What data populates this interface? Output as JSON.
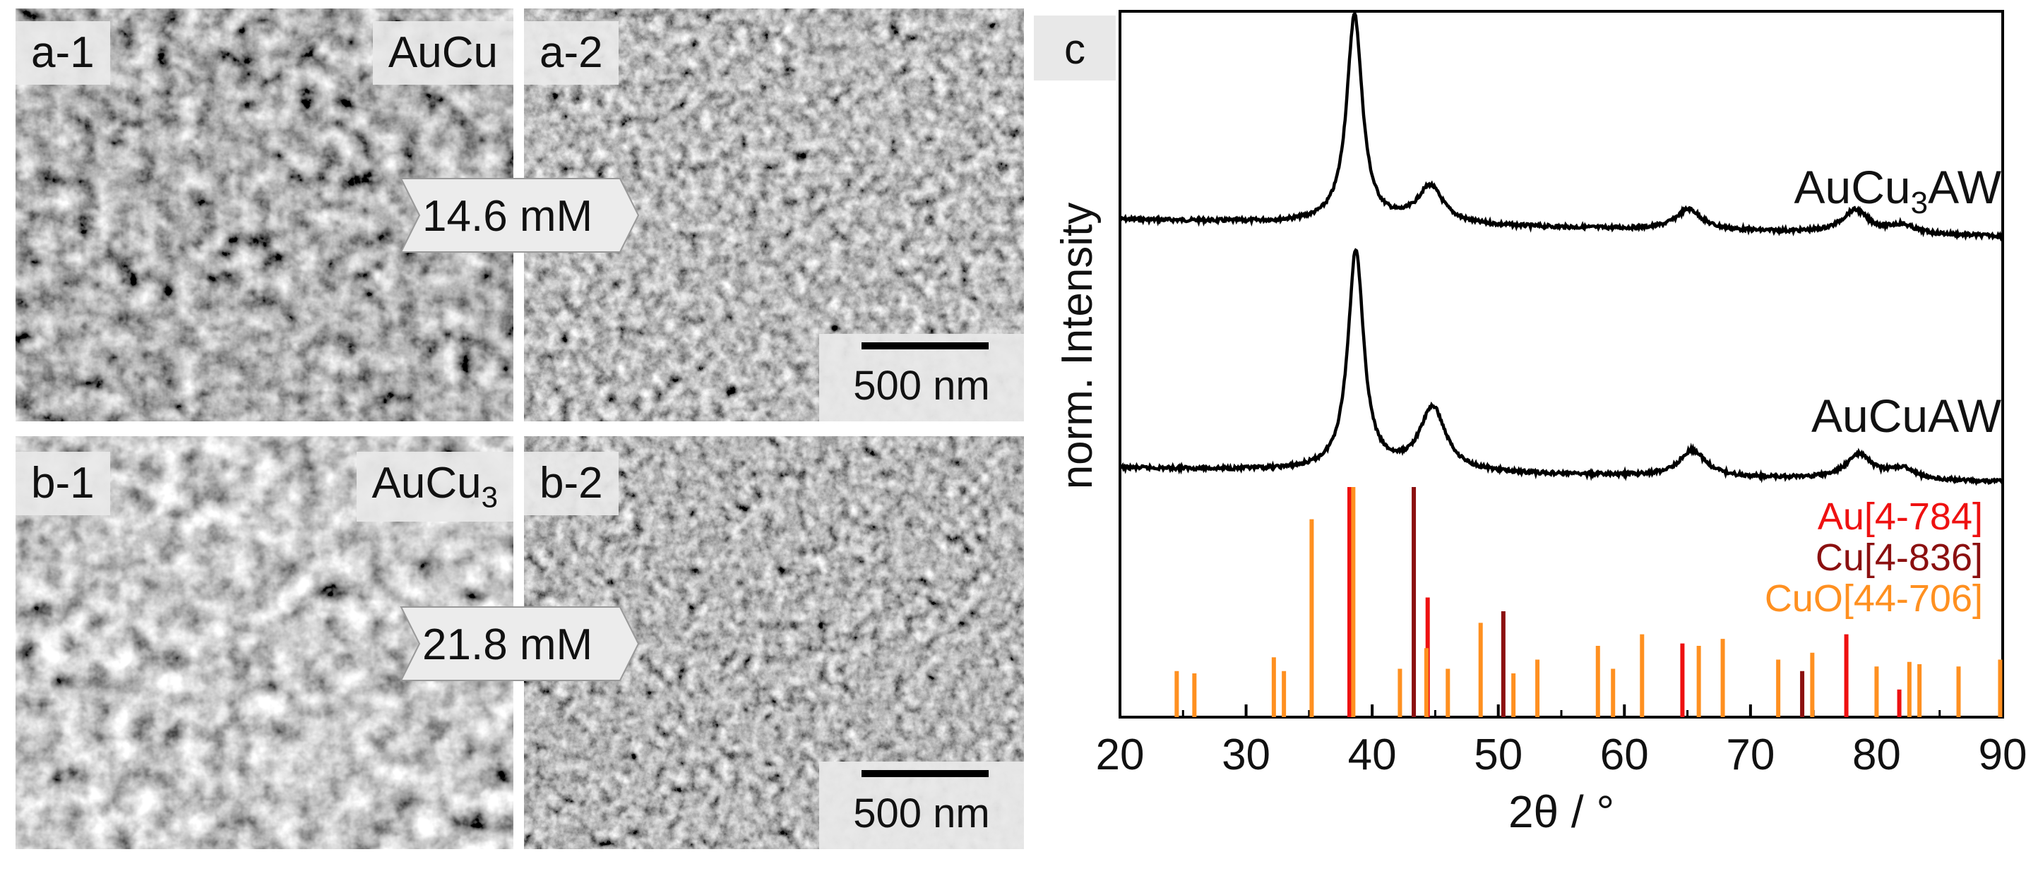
{
  "sem_panels": [
    {
      "id": "a-1",
      "label": "a-1",
      "material": "AuCu",
      "material_sub": ""
    },
    {
      "id": "a-2",
      "label": "a-2",
      "scale": "500 nm"
    },
    {
      "id": "b-1",
      "label": "b-1",
      "material": "AuCu",
      "material_sub": "3"
    },
    {
      "id": "b-2",
      "label": "b-2",
      "scale": "500 nm"
    }
  ],
  "concentrations": [
    "14.6 mM",
    "21.8 mM"
  ],
  "chart_panel_label": "c",
  "colors": {
    "au": "#ee1111",
    "cu": "#8b1010",
    "cuo": "#ff9020",
    "trace": "#000000"
  },
  "chart_data": {
    "type": "line",
    "title": "",
    "xlabel": "2θ / °",
    "ylabel": "norm. Intensity",
    "xlim": [
      20,
      90
    ],
    "xticks": [
      20,
      30,
      40,
      50,
      60,
      70,
      80,
      90
    ],
    "series": [
      {
        "name": "AuCu",
        "name_sub": "3",
        "name_suffix": "AW",
        "label": "AuCu3AW",
        "baseline": 0.0,
        "peaks": [
          {
            "x": 38.6,
            "h": 1.0
          },
          {
            "x": 44.6,
            "h": 0.18
          },
          {
            "x": 65.1,
            "h": 0.1
          },
          {
            "x": 78.3,
            "h": 0.11
          },
          {
            "x": 82.0,
            "h": 0.04
          }
        ]
      },
      {
        "name": "AuCuAW",
        "name_sub": "",
        "name_suffix": "",
        "label": "AuCuAW",
        "baseline": 0.0,
        "peaks": [
          {
            "x": 38.7,
            "h": 1.0
          },
          {
            "x": 44.8,
            "h": 0.29
          },
          {
            "x": 65.4,
            "h": 0.12
          },
          {
            "x": 78.6,
            "h": 0.11
          },
          {
            "x": 82.0,
            "h": 0.05
          }
        ]
      }
    ],
    "references": [
      {
        "name": "Au[4-784]",
        "color": "#ee1111",
        "lines": [
          {
            "x": 38.2,
            "i": 100
          },
          {
            "x": 44.4,
            "i": 52
          },
          {
            "x": 64.6,
            "i": 32
          },
          {
            "x": 77.6,
            "i": 36
          },
          {
            "x": 81.8,
            "i": 12
          }
        ]
      },
      {
        "name": "Cu[4-836]",
        "color": "#8b1010",
        "lines": [
          {
            "x": 43.3,
            "i": 100
          },
          {
            "x": 50.4,
            "i": 46
          },
          {
            "x": 74.1,
            "i": 20
          }
        ]
      },
      {
        "name": "CuO[44-706]",
        "color": "#ff9020",
        "lines": [
          {
            "x": 24.5,
            "i": 20
          },
          {
            "x": 25.9,
            "i": 19
          },
          {
            "x": 32.2,
            "i": 26
          },
          {
            "x": 33.0,
            "i": 20
          },
          {
            "x": 35.2,
            "i": 86
          },
          {
            "x": 38.5,
            "i": 100
          },
          {
            "x": 42.2,
            "i": 21
          },
          {
            "x": 44.3,
            "i": 30
          },
          {
            "x": 46.0,
            "i": 21
          },
          {
            "x": 48.6,
            "i": 41
          },
          {
            "x": 51.2,
            "i": 19
          },
          {
            "x": 53.1,
            "i": 25
          },
          {
            "x": 57.9,
            "i": 31
          },
          {
            "x": 59.1,
            "i": 21
          },
          {
            "x": 61.4,
            "i": 36
          },
          {
            "x": 65.9,
            "i": 31
          },
          {
            "x": 67.8,
            "i": 34
          },
          {
            "x": 72.2,
            "i": 25
          },
          {
            "x": 74.9,
            "i": 28
          },
          {
            "x": 80.0,
            "i": 22
          },
          {
            "x": 82.6,
            "i": 24
          },
          {
            "x": 83.4,
            "i": 23
          },
          {
            "x": 86.5,
            "i": 22
          },
          {
            "x": 89.8,
            "i": 25
          }
        ]
      }
    ]
  }
}
